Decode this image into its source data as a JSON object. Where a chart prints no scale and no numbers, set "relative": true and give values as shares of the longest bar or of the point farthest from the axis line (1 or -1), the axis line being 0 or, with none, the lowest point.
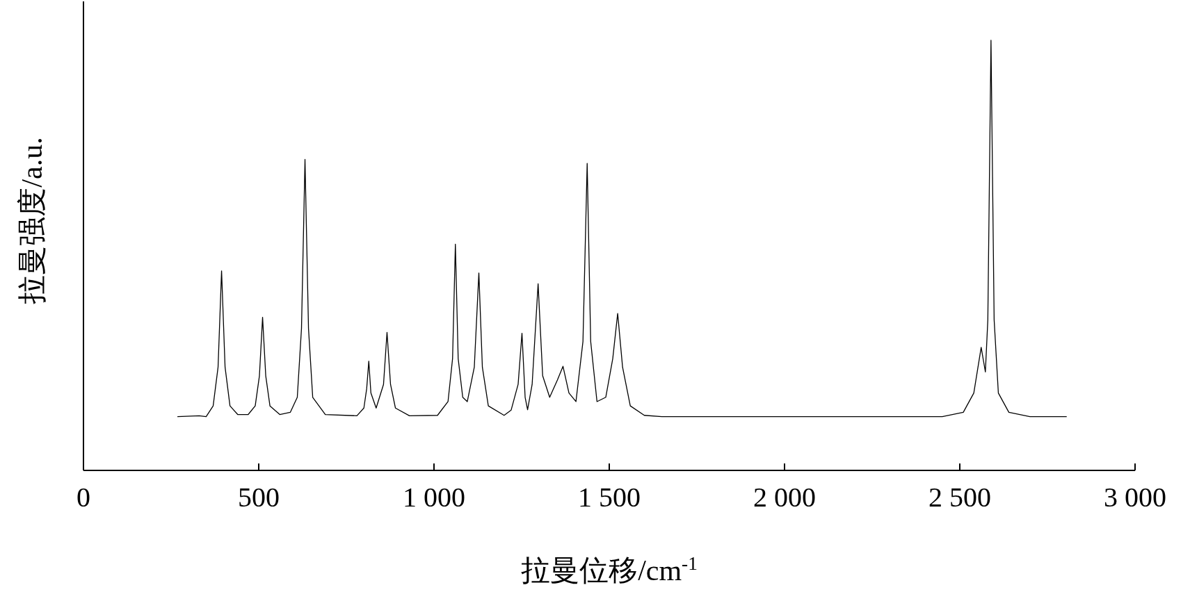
{
  "chart_data": {
    "type": "line",
    "relative": true,
    "xlabel": "拉曼位移/cm$^{-1}$",
    "ylabel": "拉曼强度/a.u.",
    "xlim": [
      0,
      3000
    ],
    "xticks": [
      0,
      500,
      {
        "value": 1000,
        "label": "1 000"
      },
      {
        "value": 1500,
        "label": "1 500"
      },
      {
        "value": 2000,
        "label": "2 000"
      },
      {
        "value": 2500,
        "label": "2 500"
      },
      {
        "value": 3000,
        "label": "3 000"
      }
    ],
    "grid": false,
    "marker": "none",
    "line_style": "solid",
    "series": [
      {
        "color": "#000000",
        "x": [
          268,
          330,
          350,
          370,
          384,
          394,
          404,
          418,
          440,
          470,
          490,
          502,
          511,
          520,
          532,
          560,
          590,
          610,
          622,
          632,
          642,
          654,
          690,
          780,
          800,
          808,
          814,
          820,
          835,
          856,
          866,
          876,
          890,
          930,
          1010,
          1040,
          1053,
          1061,
          1069,
          1082,
          1095,
          1115,
          1128,
          1138,
          1155,
          1200,
          1220,
          1240,
          1251,
          1260,
          1267,
          1280,
          1297,
          1310,
          1330,
          1352,
          1368,
          1385,
          1405,
          1425,
          1437,
          1447,
          1465,
          1490,
          1510,
          1524,
          1538,
          1560,
          1600,
          1650,
          2450,
          2510,
          2540,
          2561,
          2573,
          2580,
          2589,
          2598,
          2610,
          2640,
          2700,
          2805
        ],
        "values": [
          0.125,
          0.127,
          0.125,
          0.15,
          0.24,
          0.464,
          0.24,
          0.15,
          0.13,
          0.13,
          0.15,
          0.22,
          0.356,
          0.22,
          0.15,
          0.13,
          0.135,
          0.17,
          0.33,
          0.723,
          0.33,
          0.17,
          0.13,
          0.127,
          0.145,
          0.19,
          0.254,
          0.18,
          0.145,
          0.2,
          0.321,
          0.2,
          0.145,
          0.127,
          0.128,
          0.16,
          0.26,
          0.526,
          0.26,
          0.17,
          0.16,
          0.24,
          0.459,
          0.24,
          0.15,
          0.128,
          0.14,
          0.2,
          0.319,
          0.17,
          0.141,
          0.2,
          0.434,
          0.22,
          0.17,
          0.21,
          0.242,
          0.18,
          0.16,
          0.3,
          0.714,
          0.3,
          0.16,
          0.17,
          0.26,
          0.365,
          0.24,
          0.15,
          0.128,
          0.125,
          0.125,
          0.135,
          0.18,
          0.286,
          0.229,
          0.35,
          1.0,
          0.35,
          0.18,
          0.135,
          0.125,
          0.125
        ]
      }
    ]
  }
}
